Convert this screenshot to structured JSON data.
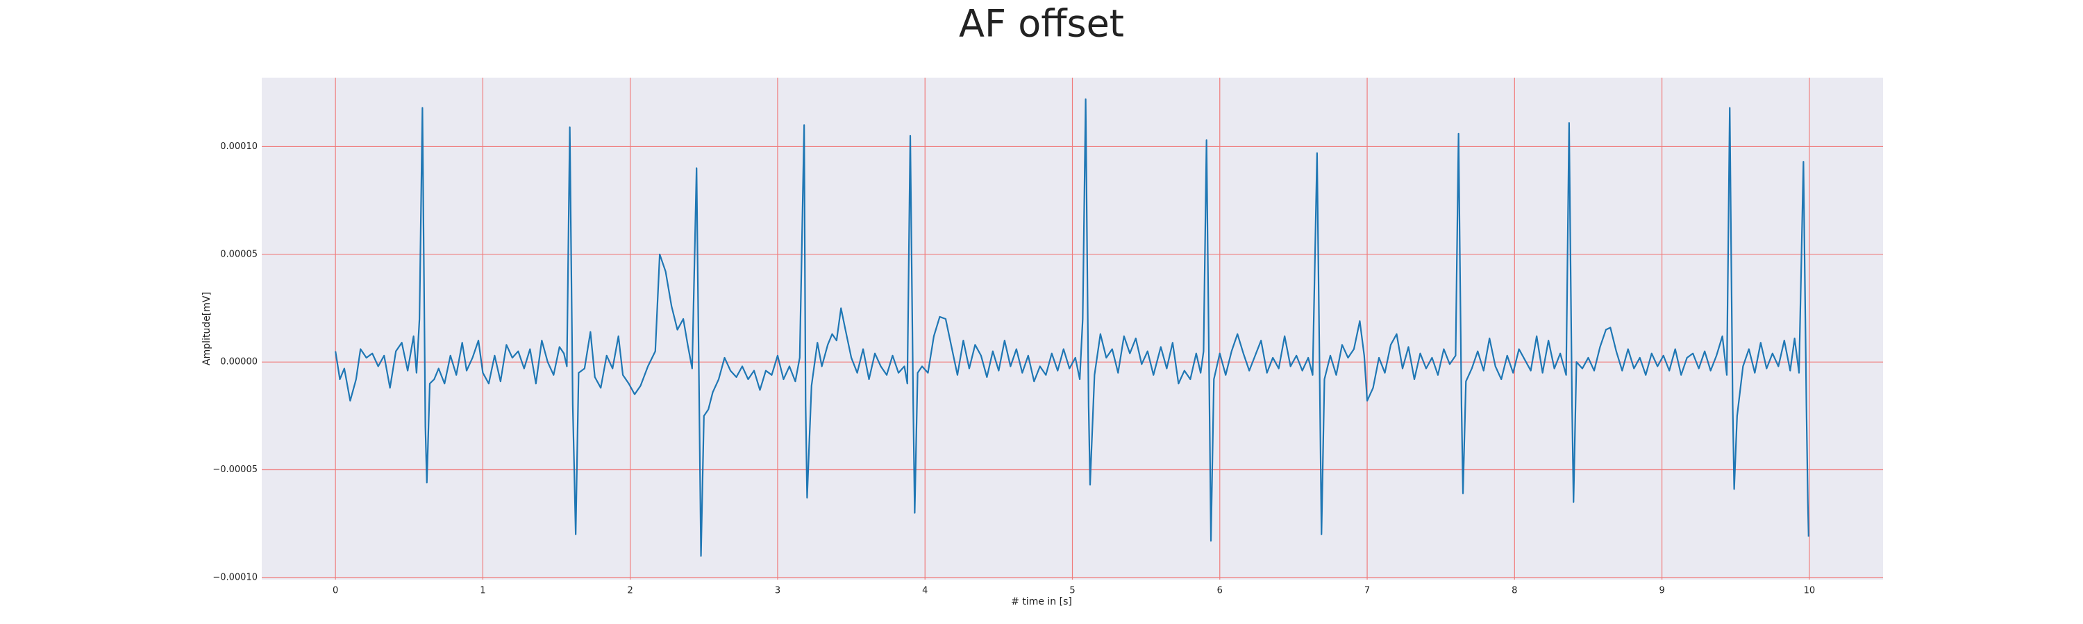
{
  "chart_data": {
    "type": "line",
    "title": "AF offset",
    "xlabel": "# time in [s]",
    "ylabel": "Amplitude[mV]",
    "color": "#1f77b4",
    "background": "#eaeaf2",
    "grid": true,
    "grid_color": "#f07c7c",
    "xlim": [
      -0.5,
      10.5
    ],
    "ylim": [
      -0.000101,
      0.000132
    ],
    "xticks": [
      0,
      1,
      2,
      3,
      4,
      5,
      6,
      7,
      8,
      9,
      10
    ],
    "yticks": [
      {
        "value": -0.0001,
        "label": "−0.00010"
      },
      {
        "value": -5e-05,
        "label": "−0.00005"
      },
      {
        "value": 0,
        "label": "0.00000"
      },
      {
        "value": 5e-05,
        "label": "0.00005"
      },
      {
        "value": 0.0001,
        "label": "0.00010"
      }
    ],
    "x": [
      0.0,
      0.03,
      0.06,
      0.1,
      0.14,
      0.17,
      0.21,
      0.25,
      0.29,
      0.33,
      0.37,
      0.41,
      0.45,
      0.49,
      0.53,
      0.55,
      0.57,
      0.59,
      0.61,
      0.62,
      0.64,
      0.67,
      0.7,
      0.74,
      0.78,
      0.82,
      0.86,
      0.89,
      0.93,
      0.97,
      1.0,
      1.04,
      1.08,
      1.12,
      1.16,
      1.2,
      1.24,
      1.28,
      1.32,
      1.36,
      1.4,
      1.44,
      1.48,
      1.52,
      1.55,
      1.57,
      1.59,
      1.61,
      1.63,
      1.65,
      1.69,
      1.73,
      1.76,
      1.8,
      1.84,
      1.88,
      1.92,
      1.95,
      1.99,
      2.03,
      2.07,
      2.12,
      2.17,
      2.2,
      2.24,
      2.28,
      2.32,
      2.36,
      2.39,
      2.42,
      2.45,
      2.47,
      2.48,
      2.5,
      2.53,
      2.56,
      2.6,
      2.64,
      2.68,
      2.72,
      2.76,
      2.8,
      2.84,
      2.88,
      2.92,
      2.96,
      3.0,
      3.04,
      3.08,
      3.12,
      3.15,
      3.18,
      3.19,
      3.2,
      3.23,
      3.27,
      3.3,
      3.34,
      3.37,
      3.4,
      3.43,
      3.46,
      3.5,
      3.54,
      3.58,
      3.62,
      3.66,
      3.7,
      3.74,
      3.78,
      3.82,
      3.86,
      3.88,
      3.9,
      3.92,
      3.93,
      3.95,
      3.98,
      4.02,
      4.06,
      4.1,
      4.14,
      4.18,
      4.22,
      4.26,
      4.3,
      4.34,
      4.38,
      4.42,
      4.46,
      4.5,
      4.54,
      4.58,
      4.62,
      4.66,
      4.7,
      4.74,
      4.78,
      4.82,
      4.86,
      4.9,
      4.94,
      4.98,
      5.02,
      5.05,
      5.07,
      5.09,
      5.11,
      5.12,
      5.15,
      5.19,
      5.23,
      5.27,
      5.31,
      5.35,
      5.39,
      5.43,
      5.47,
      5.51,
      5.55,
      5.6,
      5.64,
      5.68,
      5.72,
      5.76,
      5.8,
      5.84,
      5.87,
      5.89,
      5.91,
      5.93,
      5.94,
      5.96,
      6.0,
      6.04,
      6.08,
      6.12,
      6.16,
      6.2,
      6.24,
      6.28,
      6.32,
      6.36,
      6.4,
      6.44,
      6.48,
      6.52,
      6.56,
      6.6,
      6.63,
      6.66,
      6.68,
      6.69,
      6.71,
      6.75,
      6.79,
      6.83,
      6.87,
      6.91,
      6.95,
      6.98,
      7.0,
      7.04,
      7.08,
      7.12,
      7.16,
      7.2,
      7.24,
      7.28,
      7.32,
      7.36,
      7.4,
      7.44,
      7.48,
      7.52,
      7.56,
      7.6,
      7.62,
      7.64,
      7.65,
      7.67,
      7.71,
      7.75,
      7.79,
      7.83,
      7.87,
      7.91,
      7.95,
      7.99,
      8.03,
      8.07,
      8.11,
      8.15,
      8.19,
      8.23,
      8.27,
      8.31,
      8.35,
      8.37,
      8.39,
      8.4,
      8.42,
      8.46,
      8.5,
      8.54,
      8.58,
      8.62,
      8.65,
      8.69,
      8.73,
      8.77,
      8.81,
      8.85,
      8.89,
      8.93,
      8.97,
      9.01,
      9.05,
      9.09,
      9.13,
      9.17,
      9.21,
      9.25,
      9.29,
      9.33,
      9.37,
      9.41,
      9.44,
      9.46,
      9.48,
      9.49,
      9.51,
      9.55,
      9.59,
      9.63,
      9.67,
      9.71,
      9.75,
      9.79,
      9.83,
      9.87,
      9.9,
      9.93,
      9.96,
      9.98,
      9.99,
      9.995
    ],
    "values": [
      5e-06,
      -8e-06,
      -3e-06,
      -1.8e-05,
      -8e-06,
      6e-06,
      2e-06,
      4e-06,
      -2e-06,
      3e-06,
      -1.2e-05,
      5e-06,
      9e-06,
      -4e-06,
      1.2e-05,
      -5e-06,
      2e-05,
      0.000118,
      -3e-05,
      -5.6e-05,
      -1e-05,
      -8e-06,
      -3e-06,
      -1e-05,
      3e-06,
      -6e-06,
      9e-06,
      -4e-06,
      2e-06,
      1e-05,
      -5e-06,
      -1e-05,
      3e-06,
      -9e-06,
      8e-06,
      2e-06,
      5e-06,
      -3e-06,
      6e-06,
      -1e-05,
      1e-05,
      0,
      -6e-06,
      7e-06,
      4e-06,
      -2e-06,
      0.000109,
      -2e-05,
      -8e-05,
      -5e-06,
      -3e-06,
      1.4e-05,
      -7e-06,
      -1.2e-05,
      3e-06,
      -3e-06,
      1.2e-05,
      -6e-06,
      -1e-05,
      -1.5e-05,
      -1.1e-05,
      -2e-06,
      5e-06,
      5e-05,
      4.2e-05,
      2.6e-05,
      1.5e-05,
      2e-05,
      8e-06,
      -3e-06,
      9e-05,
      -3e-05,
      -9e-05,
      -2.5e-05,
      -2.2e-05,
      -1.4e-05,
      -8e-06,
      2e-06,
      -4e-06,
      -7e-06,
      -2e-06,
      -8e-06,
      -4e-06,
      -1.3e-05,
      -4e-06,
      -6e-06,
      3e-06,
      -8e-06,
      -2e-06,
      -9e-06,
      2e-06,
      0.00011,
      -2e-05,
      -6.3e-05,
      -1.1e-05,
      9e-06,
      -2e-06,
      8e-06,
      1.3e-05,
      1e-05,
      2.5e-05,
      1.5e-05,
      2e-06,
      -5e-06,
      6e-06,
      -8e-06,
      4e-06,
      -2e-06,
      -6e-06,
      3e-06,
      -5e-06,
      -2e-06,
      -1e-05,
      0.000105,
      -2e-05,
      -7e-05,
      -5e-06,
      -2e-06,
      -5e-06,
      1.2e-05,
      2.1e-05,
      2e-05,
      7e-06,
      -6e-06,
      1e-05,
      -3e-06,
      8e-06,
      3e-06,
      -7e-06,
      5e-06,
      -4e-06,
      1e-05,
      -2e-06,
      6e-06,
      -5e-06,
      3e-06,
      -9e-06,
      -2e-06,
      -6e-06,
      4e-06,
      -4e-06,
      6e-06,
      -3e-06,
      2e-06,
      -8e-06,
      2e-05,
      0.000122,
      -2e-05,
      -5.7e-05,
      -6e-06,
      1.3e-05,
      2e-06,
      6e-06,
      -5e-06,
      1.2e-05,
      4e-06,
      1.1e-05,
      -1e-06,
      5e-06,
      -6e-06,
      7e-06,
      -3e-06,
      9e-06,
      -1e-05,
      -4e-06,
      -8e-06,
      4e-06,
      -5e-06,
      5e-06,
      0.000103,
      -2e-05,
      -8.3e-05,
      -8e-06,
      4e-06,
      -6e-06,
      5e-06,
      1.3e-05,
      4e-06,
      -4e-06,
      3e-06,
      1e-05,
      -5e-06,
      2e-06,
      -3e-06,
      1.2e-05,
      -2e-06,
      3e-06,
      -4e-06,
      2e-06,
      -6e-06,
      9.7e-05,
      -2e-05,
      -8e-05,
      -8e-06,
      3e-06,
      -6e-06,
      8e-06,
      2e-06,
      6e-06,
      1.9e-05,
      3e-06,
      -1.8e-05,
      -1.2e-05,
      2e-06,
      -5e-06,
      8e-06,
      1.3e-05,
      -3e-06,
      7e-06,
      -8e-06,
      4e-06,
      -3e-06,
      2e-06,
      -6e-06,
      6e-06,
      -1e-06,
      3e-06,
      0.000106,
      -2e-05,
      -6.1e-05,
      -9e-06,
      -3e-06,
      5e-06,
      -4e-06,
      1.1e-05,
      -2e-06,
      -8e-06,
      3e-06,
      -5e-06,
      6e-06,
      1e-06,
      -4e-06,
      1.2e-05,
      -5e-06,
      1e-05,
      -3e-06,
      4e-06,
      -6e-06,
      0.000111,
      -2e-05,
      -6.5e-05,
      0,
      -3e-06,
      2e-06,
      -4e-06,
      7e-06,
      1.5e-05,
      1.6e-05,
      5e-06,
      -4e-06,
      6e-06,
      -3e-06,
      2e-06,
      -6e-06,
      4e-06,
      -2e-06,
      3e-06,
      -4e-06,
      6e-06,
      -6e-06,
      2e-06,
      4e-06,
      -3e-06,
      5e-06,
      -4e-06,
      3e-06,
      1.2e-05,
      -6e-06,
      0.000118,
      -2e-05,
      -5.9e-05,
      -2.5e-05,
      -2e-06,
      6e-06,
      -5e-06,
      9e-06,
      -3e-06,
      4e-06,
      -2e-06,
      1e-05,
      -4e-06,
      1.1e-05,
      -5e-06,
      9.3e-05,
      -2e-05,
      -6.5e-05,
      -8.1e-05
    ]
  }
}
